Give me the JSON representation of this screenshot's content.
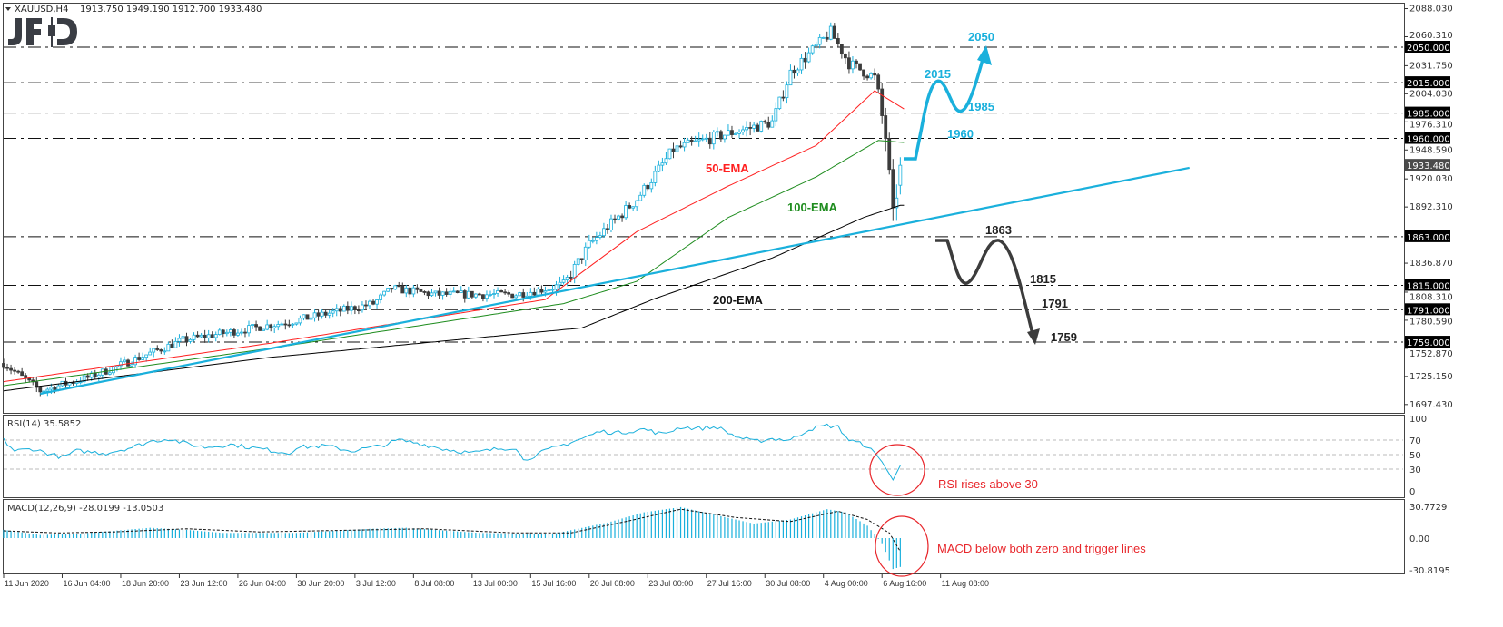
{
  "header": {
    "symbol": "XAUUSD,H4",
    "ohlc": "1913.750 1949.190 1912.700 1933.480",
    "logo": "JFD"
  },
  "chart_data": {
    "type": "candlestick",
    "title": "XAUUSD,H4",
    "ylim": [
      1697.43,
      2088.03
    ],
    "price_ticks": [
      "2088.030",
      "2060.310",
      "2031.750",
      "2004.030",
      "1976.310",
      "1948.590",
      "1920.030",
      "1892.310",
      "1836.870",
      "1808.310",
      "1780.590",
      "1752.870",
      "1725.150",
      "1697.430"
    ],
    "current_price": "1933.480",
    "levels": [
      {
        "value": 2050,
        "label": "2050.000"
      },
      {
        "value": 2015,
        "label": "2015.000"
      },
      {
        "value": 1985,
        "label": "1985.000"
      },
      {
        "value": 1960,
        "label": "1960.000"
      },
      {
        "value": 1863,
        "label": "1863.000"
      },
      {
        "value": 1815,
        "label": "1815.000"
      },
      {
        "value": 1791,
        "label": "1791.000"
      },
      {
        "value": 1759,
        "label": "1759.000"
      }
    ],
    "x_labels": [
      "11 Jun 2020",
      "16 Jun 04:00",
      "18 Jun 20:00",
      "23 Jun 12:00",
      "26 Jun 04:00",
      "30 Jun 20:00",
      "3 Jul 12:00",
      "8 Jul 08:00",
      "13 Jul 00:00",
      "15 Jul 16:00",
      "20 Jul 08:00",
      "23 Jul 00:00",
      "27 Jul 16:00",
      "30 Jul 08:00",
      "4 Aug 00:00",
      "6 Aug 16:00",
      "11 Aug 08:00"
    ],
    "bars_per_label": 16,
    "close_path": [
      [
        0,
        1738
      ],
      [
        10,
        1711
      ],
      [
        24,
        1725
      ],
      [
        49,
        1761
      ],
      [
        78,
        1779
      ],
      [
        101,
        1797
      ],
      [
        106,
        1812
      ],
      [
        118,
        1806
      ],
      [
        140,
        1806
      ],
      [
        153,
        1815
      ],
      [
        160,
        1855
      ],
      [
        173,
        1900
      ],
      [
        183,
        1949
      ],
      [
        195,
        1962
      ],
      [
        210,
        1976
      ],
      [
        215,
        2025
      ],
      [
        226,
        2065
      ],
      [
        231,
        2034
      ],
      [
        238,
        2020
      ],
      [
        241,
        1962
      ],
      [
        243,
        1881
      ],
      [
        245,
        1933
      ]
    ],
    "ema50": [
      [
        0,
        1720
      ],
      [
        73,
        1758
      ],
      [
        148,
        1801
      ],
      [
        173,
        1868
      ],
      [
        198,
        1913
      ],
      [
        222,
        1953
      ],
      [
        238,
        2007
      ],
      [
        246,
        1989
      ]
    ],
    "ema100": [
      [
        0,
        1716
      ],
      [
        73,
        1753
      ],
      [
        153,
        1797
      ],
      [
        173,
        1819
      ],
      [
        198,
        1882
      ],
      [
        222,
        1922
      ],
      [
        239,
        1958
      ],
      [
        246,
        1956
      ]
    ],
    "ema200": [
      [
        0,
        1711
      ],
      [
        73,
        1744
      ],
      [
        158,
        1773
      ],
      [
        178,
        1802
      ],
      [
        210,
        1842
      ],
      [
        235,
        1882
      ],
      [
        245,
        1894
      ]
    ],
    "trendline": [
      [
        10,
        1708
      ],
      [
        324,
        1931
      ]
    ],
    "ema_labels": {
      "ema50": "50-EMA",
      "ema100": "100-EMA",
      "ema200": "200-EMA"
    },
    "projection_labels": {
      "up": [
        "2050",
        "2015",
        "1985",
        "1960"
      ],
      "down": [
        "1863",
        "1815",
        "1791",
        "1759"
      ]
    },
    "rsi": {
      "label": "RSI(14) 35.5852",
      "ticks": [
        "100",
        "70",
        "50",
        "30",
        "0"
      ],
      "ylim": [
        0,
        100
      ],
      "levels": [
        70,
        50,
        30
      ],
      "values": [
        [
          0,
          70
        ],
        [
          3,
          55
        ],
        [
          8,
          58
        ],
        [
          12,
          52
        ],
        [
          16,
          46
        ],
        [
          20,
          55
        ],
        [
          28,
          52
        ],
        [
          35,
          60
        ],
        [
          40,
          68
        ],
        [
          45,
          72
        ],
        [
          50,
          65
        ],
        [
          55,
          60
        ],
        [
          62,
          64
        ],
        [
          70,
          58
        ],
        [
          78,
          52
        ],
        [
          80,
          60
        ],
        [
          88,
          62
        ],
        [
          95,
          55
        ],
        [
          103,
          62
        ],
        [
          108,
          70
        ],
        [
          113,
          66
        ],
        [
          120,
          58
        ],
        [
          128,
          52
        ],
        [
          135,
          58
        ],
        [
          140,
          60
        ],
        [
          142,
          42
        ],
        [
          148,
          55
        ],
        [
          152,
          62
        ],
        [
          158,
          72
        ],
        [
          163,
          82
        ],
        [
          168,
          80
        ],
        [
          175,
          85
        ],
        [
          180,
          78
        ],
        [
          185,
          88
        ],
        [
          190,
          86
        ],
        [
          195,
          88
        ],
        [
          200,
          75
        ],
        [
          205,
          68
        ],
        [
          210,
          72
        ],
        [
          215,
          70
        ],
        [
          220,
          85
        ],
        [
          225,
          90
        ],
        [
          228,
          88
        ],
        [
          231,
          70
        ],
        [
          236,
          62
        ],
        [
          240,
          40
        ],
        [
          243,
          15
        ],
        [
          245,
          35
        ]
      ],
      "annotation": "RSI rises above 30"
    },
    "macd": {
      "label": "MACD(12,26,9) -28.0199 -13.0503",
      "ticks": [
        "30.7729",
        "0.00",
        "-30.8195"
      ],
      "ylim": [
        -30.8195,
        30.7729
      ],
      "histogram": [
        [
          0,
          8
        ],
        [
          10,
          3
        ],
        [
          20,
          4
        ],
        [
          40,
          10
        ],
        [
          50,
          8
        ],
        [
          60,
          5
        ],
        [
          80,
          5
        ],
        [
          100,
          9
        ],
        [
          110,
          10
        ],
        [
          130,
          5
        ],
        [
          150,
          4
        ],
        [
          165,
          15
        ],
        [
          175,
          25
        ],
        [
          185,
          30
        ],
        [
          195,
          22
        ],
        [
          205,
          14
        ],
        [
          215,
          18
        ],
        [
          225,
          28
        ],
        [
          230,
          25
        ],
        [
          236,
          12
        ],
        [
          240,
          -5
        ],
        [
          243,
          -30
        ],
        [
          245,
          -28
        ]
      ],
      "signal": [
        [
          0,
          7
        ],
        [
          15,
          5
        ],
        [
          30,
          6
        ],
        [
          50,
          9
        ],
        [
          70,
          6
        ],
        [
          100,
          8
        ],
        [
          115,
          9
        ],
        [
          140,
          5
        ],
        [
          155,
          5
        ],
        [
          170,
          16
        ],
        [
          185,
          28
        ],
        [
          200,
          20
        ],
        [
          215,
          16
        ],
        [
          228,
          26
        ],
        [
          236,
          18
        ],
        [
          242,
          5
        ],
        [
          245,
          -13
        ]
      ],
      "annotation": "MACD below both zero and trigger lines"
    }
  },
  "colors": {
    "bull": "#1ab0dc",
    "bear": "#3c3c3c",
    "ema50": "#ff2020",
    "ema100": "#1e8c1e",
    "ema200": "#000000",
    "trend": "#1ab0dc",
    "note": "#e8262b"
  }
}
